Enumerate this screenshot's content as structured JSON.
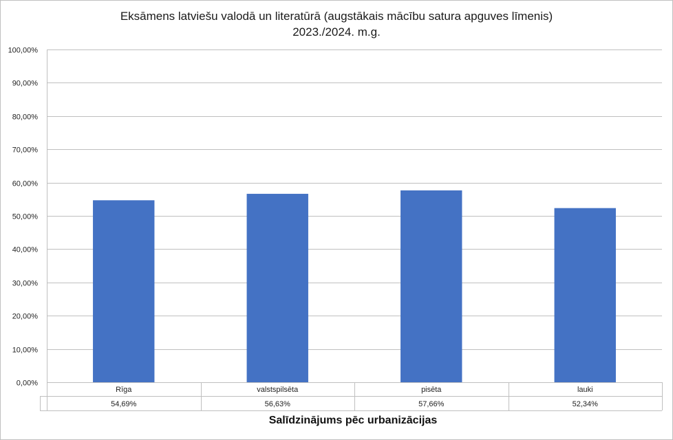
{
  "chart_data": {
    "type": "bar",
    "title": "Eksāmens latviešu valodā un literatūrā (augstākais mācību satura apguves līmenis)",
    "subtitle": "2023./2024. m.g.",
    "xlabel": "Salīdzinājums pēc  urbanizācijas",
    "ylabel": "",
    "categories": [
      "Rīga",
      "valstspilsēta",
      "pisēta",
      "lauki"
    ],
    "values": [
      54.69,
      56.63,
      57.66,
      52.34
    ],
    "value_labels": [
      "54,69%",
      "56,63%",
      "57,66%",
      "52,34%"
    ],
    "ylim": [
      0,
      100
    ],
    "y_ticks": [
      0,
      10,
      20,
      30,
      40,
      50,
      60,
      70,
      80,
      90,
      100
    ],
    "y_tick_labels": [
      "0,00%",
      "10,00%",
      "20,00%",
      "30,00%",
      "40,00%",
      "50,00%",
      "60,00%",
      "70,00%",
      "80,00%",
      "90,00%",
      "100,00%"
    ],
    "grid": true,
    "legend": "none",
    "data_table": true,
    "bar_color": "#4472C4"
  }
}
